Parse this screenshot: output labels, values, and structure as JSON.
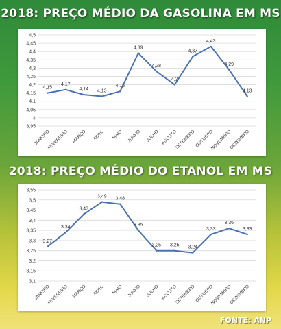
{
  "source": "FONTE: ANP",
  "chart_data": [
    {
      "type": "line",
      "title": "2018: PREÇO MÉDIO DA GASOLINA EM MS",
      "categories": [
        "JANEIRO",
        "FEVEREIRO",
        "MARÇO",
        "ABRIL",
        "MAIO",
        "JUNHO",
        "JULHO",
        "AGOSTO",
        "SETEMBRO",
        "OUTUBRO",
        "NOVEMBRO",
        "DEZEMBRO"
      ],
      "values": [
        4.15,
        4.17,
        4.14,
        4.13,
        4.16,
        4.39,
        4.28,
        4.2,
        4.37,
        4.43,
        4.29,
        4.13
      ],
      "value_labels": [
        "4,15",
        "4,17",
        "4,14",
        "4,13",
        "4,16",
        "4,39",
        "4,28",
        "4,2",
        "4,37",
        "4,43",
        "4,29",
        "4,13"
      ],
      "ylim": [
        3.95,
        4.5
      ],
      "y_ticks": [
        "3,95",
        "4",
        "4,05",
        "4,1",
        "4,15",
        "4,2",
        "4,25",
        "4,3",
        "4,35",
        "4,4",
        "4,45",
        "4,5"
      ],
      "grid": true,
      "line_color": "#4a72b0"
    },
    {
      "type": "line",
      "title": "2018: PREÇO MÉDIO DO ETANOL EM MS",
      "categories": [
        "JANEIRO",
        "FEVEREIRO",
        "MARÇO",
        "ABRIL",
        "MAIO",
        "JUNHO",
        "JULHO",
        "AGOSTO",
        "SETEMBRO",
        "OUTUBRO",
        "NOVEMBRO",
        "DEZEMBRO"
      ],
      "values": [
        3.27,
        3.34,
        3.43,
        3.49,
        3.48,
        3.35,
        3.25,
        3.25,
        3.24,
        3.33,
        3.36,
        3.33
      ],
      "value_labels": [
        "3,27",
        "3,34",
        "3,43",
        "3,49",
        "3,48",
        "3,35",
        "3,25",
        "3,25",
        "3,24",
        "3,33",
        "3,36",
        "3,33"
      ],
      "ylim": [
        3.1,
        3.55
      ],
      "y_ticks": [
        "3,1",
        "3,15",
        "3,2",
        "3,25",
        "3,3",
        "3,35",
        "3,4",
        "3,45",
        "3,5",
        "3,55"
      ],
      "grid": true,
      "line_color": "#4a72b0"
    }
  ]
}
